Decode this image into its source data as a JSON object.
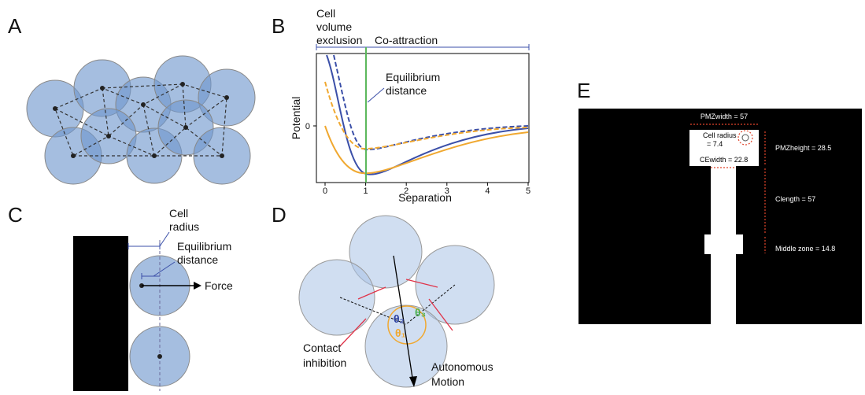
{
  "panels": {
    "a": {
      "label": "A"
    },
    "b": {
      "label": "B",
      "region_left": [
        "Cell",
        "volume",
        "exclusion"
      ],
      "region_right": "Co-attraction",
      "annotation": [
        "Equilibrium",
        "distance"
      ],
      "ylabel": "Potential",
      "xlabel": "Separation",
      "xticks": [
        0,
        1,
        2,
        3,
        4,
        5
      ],
      "yticks": [
        0
      ]
    },
    "c": {
      "label": "C",
      "cell_radius": [
        "Cell",
        "radius"
      ],
      "equilibrium": [
        "Equilibrium",
        "distance"
      ],
      "force": "Force"
    },
    "d": {
      "label": "D",
      "angles": [
        "θ₂",
        "θ₃",
        "θ₁"
      ],
      "contact": [
        "Contact",
        "inhibition"
      ],
      "motion": [
        "Autonomous",
        "Motion"
      ]
    },
    "e": {
      "label": "E",
      "pmz_width": "PMZwidth = 57",
      "cell_radius": [
        "Cell radius",
        "= 7.4"
      ],
      "pmz_height": "PMZheight = 28.5",
      "ce_width": "CEwidth = 22.8",
      "c_length": "Clength = 57",
      "middle_zone": "Middle zone = 14.8"
    }
  }
}
